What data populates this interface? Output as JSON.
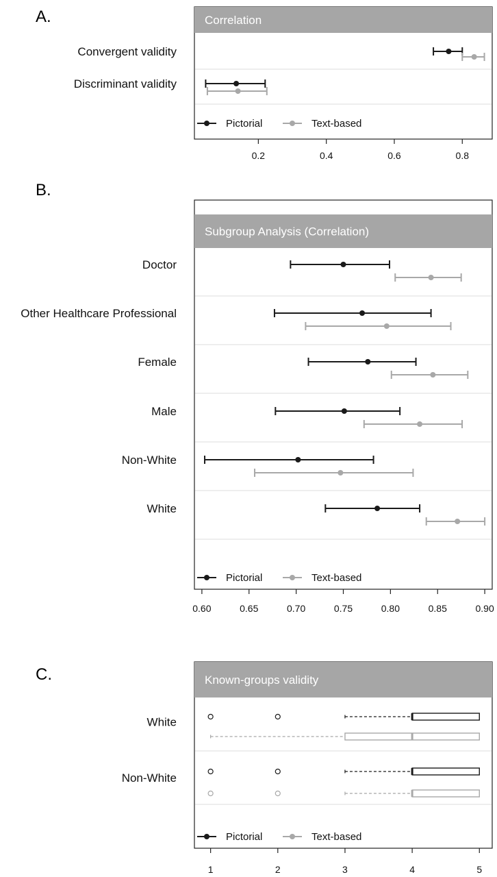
{
  "colors": {
    "pictorial": "#1a1a1a",
    "text_based": "#a8a8a8",
    "header_bg": "#a6a6a6",
    "row_divider": "#dcdcdc"
  },
  "chart_data": [
    {
      "panel": "A.",
      "type": "forest",
      "title": "Correlation",
      "legend": {
        "placement": "bottom-left",
        "entries": [
          "Pictorial",
          "Text-based"
        ]
      },
      "x_ticks": [
        "0.2",
        "0.4",
        "0.6",
        "0.8"
      ],
      "xlim": [
        0.02,
        0.88
      ],
      "rows": [
        {
          "label": "Convergent validity",
          "pictorial": {
            "estimate": 0.76,
            "low": 0.715,
            "high": 0.8
          },
          "text_based": {
            "estimate": 0.835,
            "low": 0.8,
            "high": 0.865
          }
        },
        {
          "label": "Discriminant validity",
          "pictorial": {
            "estimate": 0.135,
            "low": 0.045,
            "high": 0.22
          },
          "text_based": {
            "estimate": 0.14,
            "low": 0.05,
            "high": 0.225
          }
        }
      ]
    },
    {
      "panel": "B.",
      "type": "forest",
      "title": "Subgroup Analysis (Correlation)",
      "legend": {
        "placement": "bottom-left",
        "entries": [
          "Pictorial",
          "Text-based"
        ]
      },
      "x_ticks": [
        "0.60",
        "0.65",
        "0.70",
        "0.75",
        "0.80",
        "0.85",
        "0.90"
      ],
      "xlim": [
        0.595,
        0.905
      ],
      "rows": [
        {
          "label": "Doctor",
          "pictorial": {
            "estimate": 0.75,
            "low": 0.694,
            "high": 0.799
          },
          "text_based": {
            "estimate": 0.843,
            "low": 0.805,
            "high": 0.875
          }
        },
        {
          "label": "Other Healthcare Professional",
          "pictorial": {
            "estimate": 0.77,
            "low": 0.677,
            "high": 0.843
          },
          "text_based": {
            "estimate": 0.796,
            "low": 0.71,
            "high": 0.864
          }
        },
        {
          "label": "Female",
          "pictorial": {
            "estimate": 0.776,
            "low": 0.713,
            "high": 0.827
          },
          "text_based": {
            "estimate": 0.845,
            "low": 0.801,
            "high": 0.882
          }
        },
        {
          "label": "Male",
          "pictorial": {
            "estimate": 0.751,
            "low": 0.678,
            "high": 0.81
          },
          "text_based": {
            "estimate": 0.831,
            "low": 0.772,
            "high": 0.876
          }
        },
        {
          "label": "Non-White",
          "pictorial": {
            "estimate": 0.702,
            "low": 0.603,
            "high": 0.782
          },
          "text_based": {
            "estimate": 0.747,
            "low": 0.656,
            "high": 0.824
          }
        },
        {
          "label": "White",
          "pictorial": {
            "estimate": 0.786,
            "low": 0.731,
            "high": 0.831
          },
          "text_based": {
            "estimate": 0.871,
            "low": 0.838,
            "high": 0.9
          }
        }
      ]
    },
    {
      "panel": "C.",
      "type": "boxplot",
      "title": "Known-groups validity",
      "legend": {
        "placement": "bottom-left",
        "entries": [
          "Pictorial",
          "Text-based"
        ]
      },
      "x_ticks": [
        "1",
        "2",
        "3",
        "4",
        "5"
      ],
      "xlim": [
        0.8,
        5.15
      ],
      "rows": [
        {
          "label": "White",
          "pictorial": {
            "whisker_low": 3,
            "q1": 4,
            "median": 4,
            "q3": 5,
            "whisker_high": 5,
            "outliers": [
              1,
              2
            ]
          },
          "text_based": {
            "whisker_low": 1,
            "q1": 3,
            "median": 4,
            "q3": 5,
            "whisker_high": 5,
            "outliers": []
          }
        },
        {
          "label": "Non-White",
          "pictorial": {
            "whisker_low": 3,
            "q1": 4,
            "median": 4,
            "q3": 5,
            "whisker_high": 5,
            "outliers": [
              1,
              2
            ]
          },
          "text_based": {
            "whisker_low": 3,
            "q1": 4,
            "median": 4,
            "q3": 5,
            "whisker_high": 5,
            "outliers": [
              1,
              2
            ]
          }
        }
      ]
    }
  ]
}
